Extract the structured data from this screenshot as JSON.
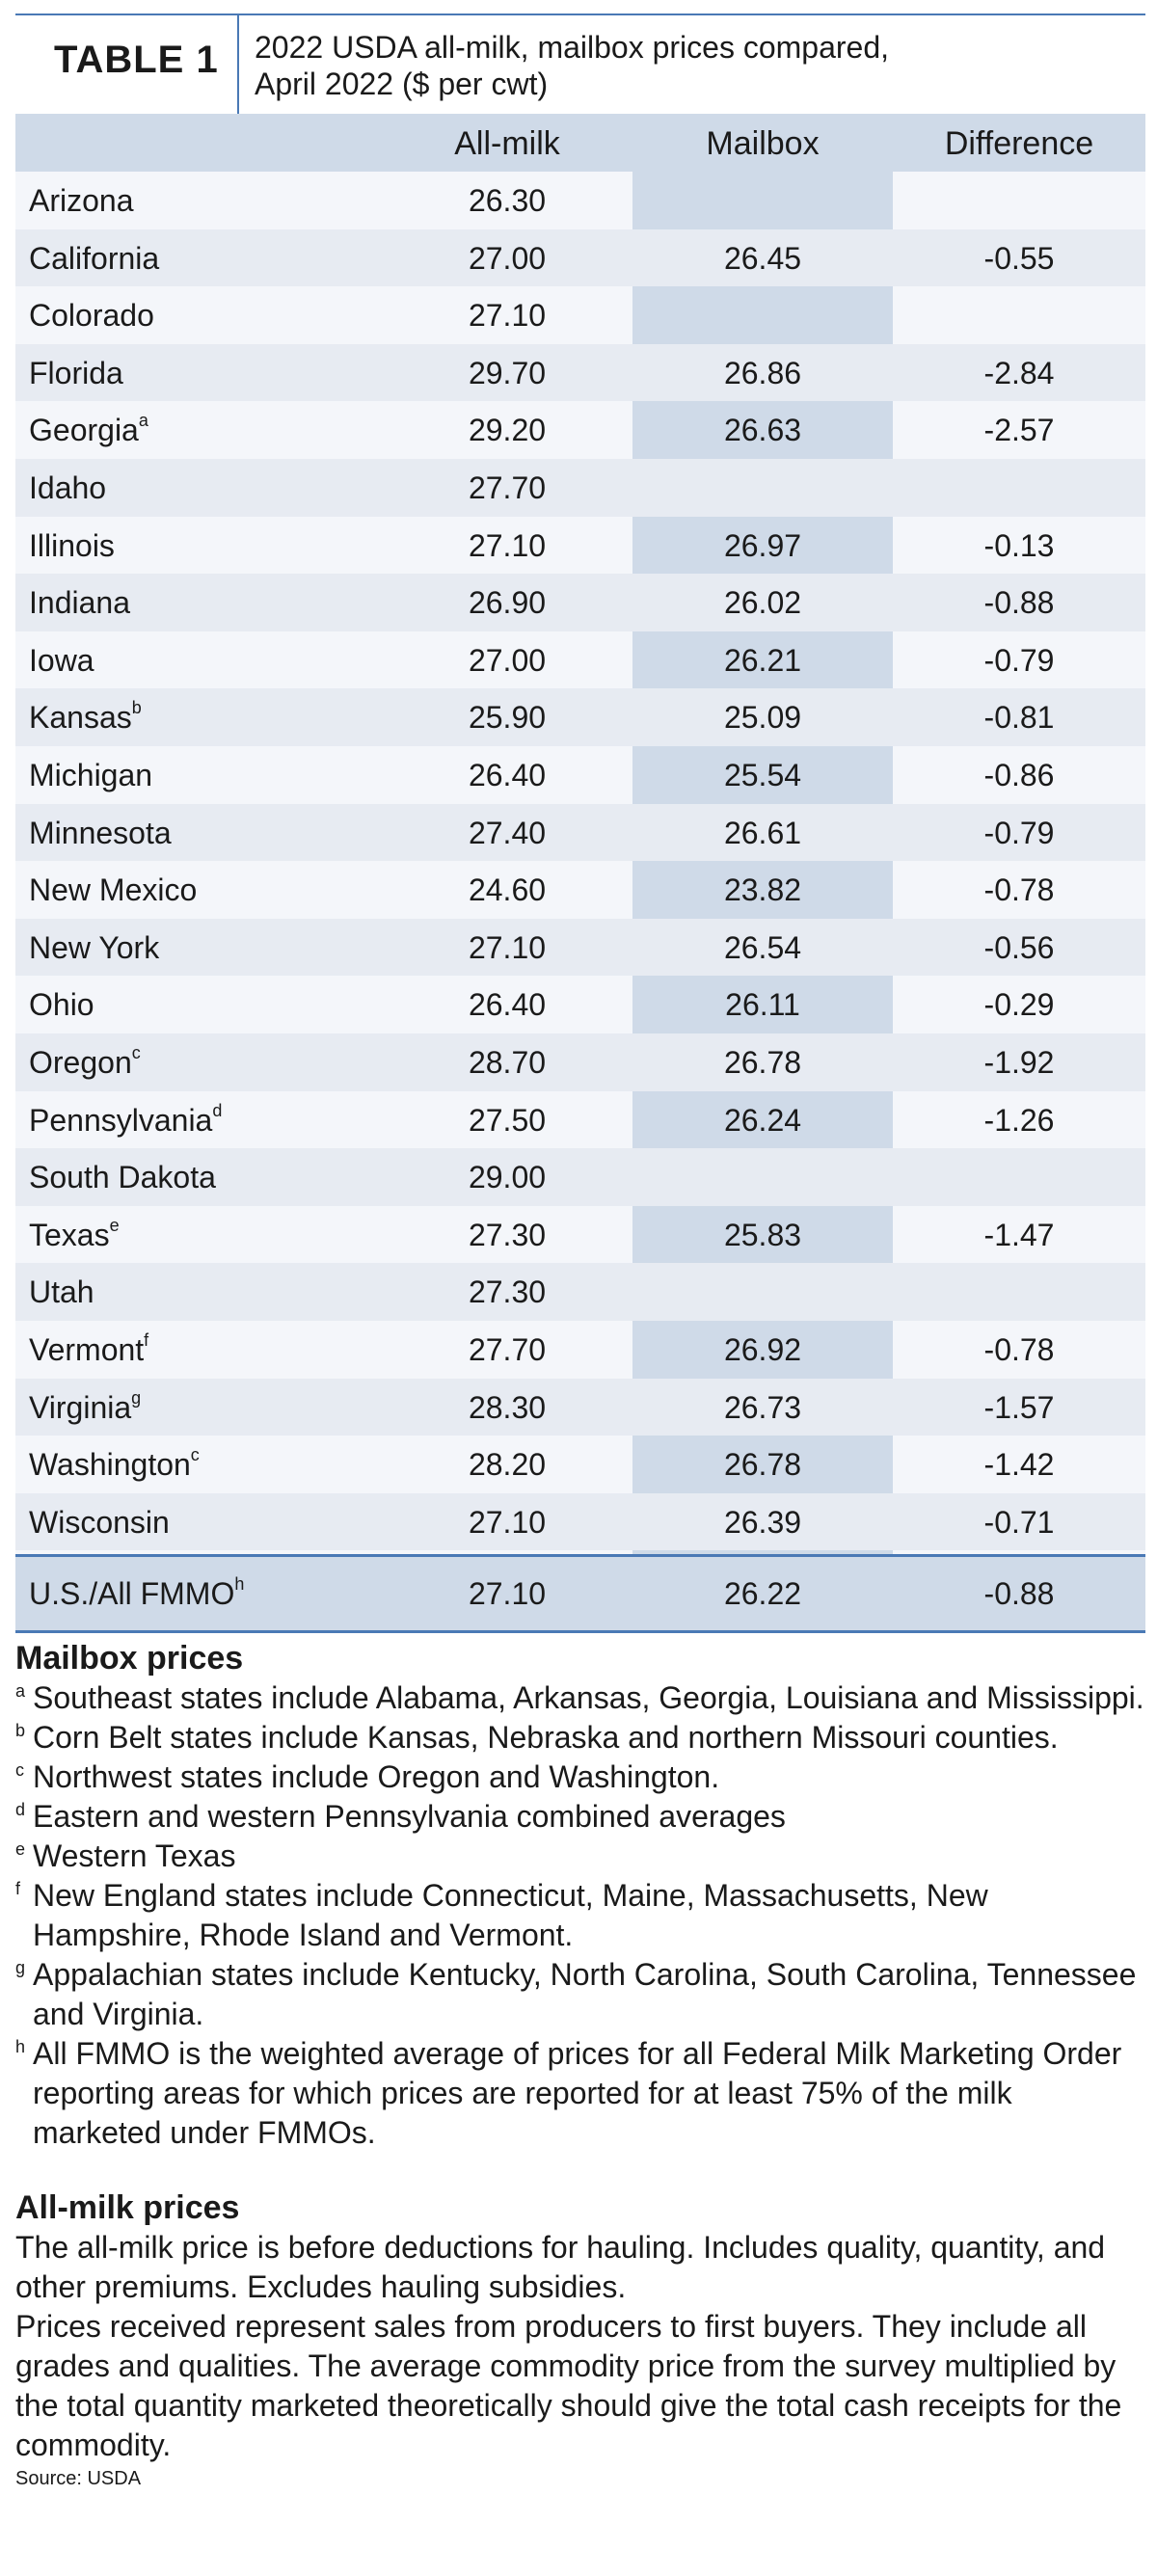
{
  "header": {
    "table_label": "TABLE 1",
    "title_line1": "2022 USDA all-milk, mailbox prices compared,",
    "title_line2": "April 2022 ($ per cwt)"
  },
  "columns": {
    "state": "",
    "all_milk": "All-milk",
    "mailbox": "Mailbox",
    "difference": "Difference"
  },
  "colors": {
    "accent_blue": "#4a79b5",
    "header_fill": "#cfdae8",
    "row_light": "#f4f6fa",
    "row_alt": "#e7ebf2"
  },
  "rows": [
    {
      "state": "Arizona",
      "fn": "",
      "all_milk": "26.30",
      "mailbox": "",
      "difference": ""
    },
    {
      "state": "California",
      "fn": "",
      "all_milk": "27.00",
      "mailbox": "26.45",
      "difference": "-0.55"
    },
    {
      "state": "Colorado",
      "fn": "",
      "all_milk": "27.10",
      "mailbox": "",
      "difference": ""
    },
    {
      "state": "Florida",
      "fn": "",
      "all_milk": "29.70",
      "mailbox": "26.86",
      "difference": "-2.84"
    },
    {
      "state": "Georgia",
      "fn": "a",
      "all_milk": "29.20",
      "mailbox": "26.63",
      "difference": "-2.57"
    },
    {
      "state": "Idaho",
      "fn": "",
      "all_milk": "27.70",
      "mailbox": "",
      "difference": ""
    },
    {
      "state": "Illinois",
      "fn": "",
      "all_milk": "27.10",
      "mailbox": "26.97",
      "difference": "-0.13"
    },
    {
      "state": "Indiana",
      "fn": "",
      "all_milk": "26.90",
      "mailbox": "26.02",
      "difference": "-0.88"
    },
    {
      "state": "Iowa",
      "fn": "",
      "all_milk": "27.00",
      "mailbox": "26.21",
      "difference": "-0.79"
    },
    {
      "state": "Kansas",
      "fn": "b",
      "all_milk": "25.90",
      "mailbox": "25.09",
      "difference": "-0.81"
    },
    {
      "state": "Michigan",
      "fn": "",
      "all_milk": "26.40",
      "mailbox": "25.54",
      "difference": "-0.86"
    },
    {
      "state": "Minnesota",
      "fn": "",
      "all_milk": "27.40",
      "mailbox": "26.61",
      "difference": "-0.79"
    },
    {
      "state": "New Mexico",
      "fn": "",
      "all_milk": "24.60",
      "mailbox": "23.82",
      "difference": "-0.78"
    },
    {
      "state": "New York",
      "fn": "",
      "all_milk": "27.10",
      "mailbox": "26.54",
      "difference": "-0.56"
    },
    {
      "state": "Ohio",
      "fn": "",
      "all_milk": "26.40",
      "mailbox": "26.11",
      "difference": "-0.29"
    },
    {
      "state": "Oregon",
      "fn": "c",
      "all_milk": "28.70",
      "mailbox": "26.78",
      "difference": "-1.92"
    },
    {
      "state": "Pennsylvania",
      "fn": "d",
      "all_milk": "27.50",
      "mailbox": "26.24",
      "difference": "-1.26"
    },
    {
      "state": "South Dakota",
      "fn": "",
      "all_milk": "29.00",
      "mailbox": "",
      "difference": ""
    },
    {
      "state": "Texas",
      "fn": "e",
      "all_milk": "27.30",
      "mailbox": "25.83",
      "difference": "-1.47"
    },
    {
      "state": "Utah",
      "fn": "",
      "all_milk": "27.30",
      "mailbox": "",
      "difference": ""
    },
    {
      "state": "Vermont",
      "fn": "f",
      "all_milk": "27.70",
      "mailbox": "26.92",
      "difference": "-0.78"
    },
    {
      "state": "Virginia",
      "fn": "g",
      "all_milk": "28.30",
      "mailbox": "26.73",
      "difference": "-1.57"
    },
    {
      "state": "Washington",
      "fn": "c",
      "all_milk": "28.20",
      "mailbox": "26.78",
      "difference": "-1.42"
    },
    {
      "state": "Wisconsin",
      "fn": "",
      "all_milk": "27.10",
      "mailbox": "26.39",
      "difference": "-0.71"
    }
  ],
  "total": {
    "state": "U.S./All FMMO",
    "fn": "h",
    "all_milk": "27.10",
    "mailbox": "26.22",
    "difference": "-0.88"
  },
  "mailbox_notes": {
    "heading": "Mailbox prices",
    "items": [
      {
        "mark": "a",
        "text": "Southeast states include Alabama, Arkansas, Georgia, Louisiana and Mississippi."
      },
      {
        "mark": "b",
        "text": "Corn Belt states include Kansas, Nebraska and northern Missouri counties."
      },
      {
        "mark": "c",
        "text": "Northwest states include Oregon and Washington."
      },
      {
        "mark": "d",
        "text": "Eastern and western Pennsylvania combined averages"
      },
      {
        "mark": "e",
        "text": "Western Texas"
      },
      {
        "mark": "f",
        "text": "New England states include Connecticut, Maine, Massachusetts, New Hampshire, Rhode Island and Vermont."
      },
      {
        "mark": "g",
        "text": "Appalachian states include Kentucky, North Carolina, South Carolina, Tennessee and Virginia."
      },
      {
        "mark": "h",
        "text": "All FMMO is the weighted average of prices for all Federal Milk Marketing Order reporting areas for which prices are reported for at least 75% of the milk marketed under FMMOs."
      }
    ]
  },
  "allmilk_notes": {
    "heading": "All-milk prices",
    "para1": "The all-milk price is before deductions for hauling. Includes quality, quantity, and other premiums. Excludes hauling subsidies.",
    "para2": "Prices received represent sales from producers to first buyers. They include all grades and qualities. The average commodity price from the survey multiplied by the total quantity marketed theoretically should give the total cash receipts for the commodity."
  },
  "source": "Source: USDA"
}
